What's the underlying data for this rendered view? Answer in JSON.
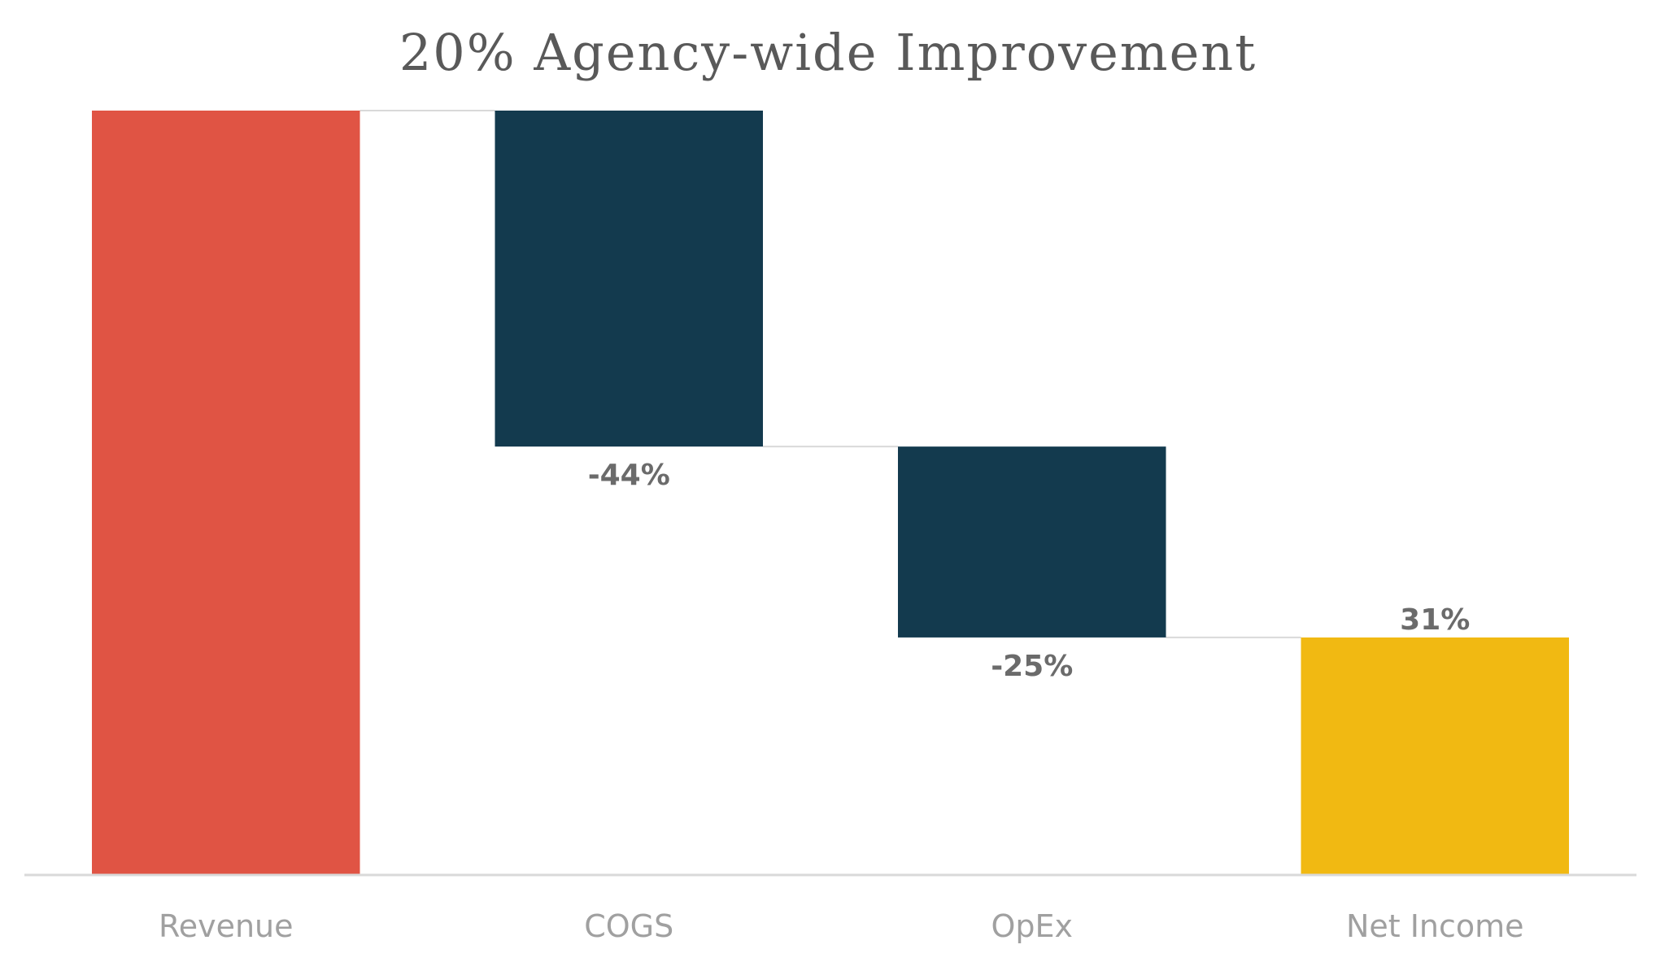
{
  "chart_data": {
    "type": "bar",
    "subtype": "waterfall",
    "title": "20% Agency-wide Improvement",
    "xlabel": "",
    "ylabel": "",
    "categories": [
      "Revenue",
      "COGS",
      "OpEx",
      "Net Income"
    ],
    "values": [
      100,
      -44,
      -25,
      31
    ],
    "data_labels": [
      "",
      "-44%",
      "-25%",
      "31%"
    ],
    "bar_kind": [
      "total",
      "decrease",
      "decrease",
      "total"
    ],
    "colors": {
      "total_start": "#E05444",
      "decrease": "#133A4E",
      "total_end": "#F1B912",
      "connector": "#d9d9d9",
      "axis": "#d9d9d9"
    },
    "ylim": [
      0,
      100
    ],
    "grid": false,
    "legend": "none"
  }
}
